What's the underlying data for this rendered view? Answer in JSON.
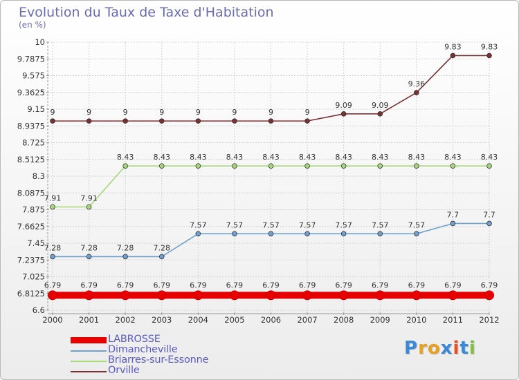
{
  "title": "Evolution du Taux de Taxe d'Habitation",
  "subtitle": "(en %)",
  "logo_text": "Proxiti",
  "chart_data": {
    "type": "line",
    "title": "Evolution du Taux de Taxe d'Habitation",
    "subtitle": "(en %)",
    "x": [
      "2000",
      "2001",
      "2002",
      "2003",
      "2004",
      "2005",
      "2006",
      "2007",
      "2008",
      "2009",
      "2010",
      "2011",
      "2012"
    ],
    "ylim": [
      6.6,
      10
    ],
    "yticks": [
      "6.6",
      "6.8125",
      "7.025",
      "7.2375",
      "7.45",
      "7.6625",
      "7.875",
      "8.0875",
      "8.3",
      "8.5125",
      "8.725",
      "8.9375",
      "9.15",
      "9.3625",
      "9.575",
      "9.7875",
      "10"
    ],
    "grid": true,
    "legend_position": "bottom-left",
    "series": [
      {
        "name": "LABROSSE",
        "color": "#e80000",
        "values": [
          6.79,
          6.79,
          6.79,
          6.79,
          6.79,
          6.79,
          6.79,
          6.79,
          6.79,
          6.79,
          6.79,
          6.79,
          6.79
        ],
        "labels": [
          "6.79",
          "6.79",
          "6.79",
          "6.79",
          "6.79",
          "6.79",
          "6.79",
          "6.79",
          "6.79",
          "6.79",
          "6.79",
          "6.79",
          "6.79"
        ]
      },
      {
        "name": "Dimancheville",
        "color": "#6ea0d0",
        "values": [
          7.28,
          7.28,
          7.28,
          7.28,
          7.57,
          7.57,
          7.57,
          7.57,
          7.57,
          7.57,
          7.57,
          7.7,
          7.7
        ],
        "labels": [
          "7.28",
          "7.28",
          "7.28",
          "7.28",
          "7.57",
          "7.57",
          "7.57",
          "7.57",
          "7.57",
          "7.57",
          "7.57",
          "7.7",
          "7.7"
        ]
      },
      {
        "name": "Briarres-sur-Essonne",
        "color": "#a6d877",
        "values": [
          7.91,
          7.91,
          8.43,
          8.43,
          8.43,
          8.43,
          8.43,
          8.43,
          8.43,
          8.43,
          8.43,
          8.43,
          8.43
        ],
        "labels": [
          "7.91",
          "7.91",
          "8.43",
          "8.43",
          "8.43",
          "8.43",
          "8.43",
          "8.43",
          "8.43",
          "8.43",
          "8.43",
          "8.43",
          "8.43"
        ]
      },
      {
        "name": "Orville",
        "color": "#7a3030",
        "values": [
          9,
          9,
          9,
          9,
          9,
          9,
          9,
          9,
          9.09,
          9.09,
          9.36,
          9.83,
          9.83
        ],
        "labels": [
          "9",
          "9",
          "9",
          "9",
          "9",
          "9",
          "9",
          "9",
          "9.09",
          "9.09",
          "9.36",
          "9.83",
          "9.83"
        ]
      }
    ]
  }
}
